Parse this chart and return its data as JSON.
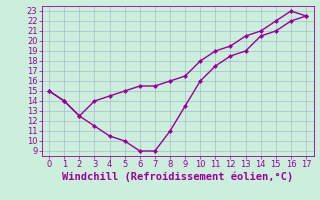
{
  "line1_x": [
    0,
    1,
    2,
    3,
    4,
    5,
    6,
    7,
    8,
    9,
    10,
    11,
    12,
    13,
    14,
    15,
    16,
    17
  ],
  "line1_y": [
    15,
    14,
    12.5,
    11.5,
    10.5,
    10,
    9,
    9,
    11,
    13.5,
    16,
    17.5,
    18.5,
    19,
    20.5,
    21,
    22,
    22.5
  ],
  "line2_x": [
    0,
    1,
    2,
    3,
    4,
    5,
    6,
    7,
    8,
    9,
    10,
    11,
    12,
    13,
    14,
    15,
    16,
    17
  ],
  "line2_y": [
    15,
    14,
    12.5,
    14,
    14.5,
    15,
    15.5,
    15.5,
    16,
    16.5,
    18,
    19,
    19.5,
    20.5,
    21,
    22,
    23,
    22.5
  ],
  "line_color": "#990099",
  "bg_color": "#cceedd",
  "grid_color": "#aabbcc",
  "xlabel": "Windchill (Refroidissement éolien,°C)",
  "xlabel_color": "#990099",
  "xlabel_fontsize": 7.5,
  "tick_color": "#990099",
  "tick_fontsize": 6,
  "xlim": [
    -0.5,
    17.5
  ],
  "ylim": [
    8.5,
    23.5
  ],
  "yticks": [
    9,
    10,
    11,
    12,
    13,
    14,
    15,
    16,
    17,
    18,
    19,
    20,
    21,
    22,
    23
  ],
  "xticks": [
    0,
    1,
    2,
    3,
    4,
    5,
    6,
    7,
    8,
    9,
    10,
    11,
    12,
    13,
    14,
    15,
    16,
    17
  ],
  "marker": "D",
  "marker_size": 2.5,
  "line_width": 1
}
